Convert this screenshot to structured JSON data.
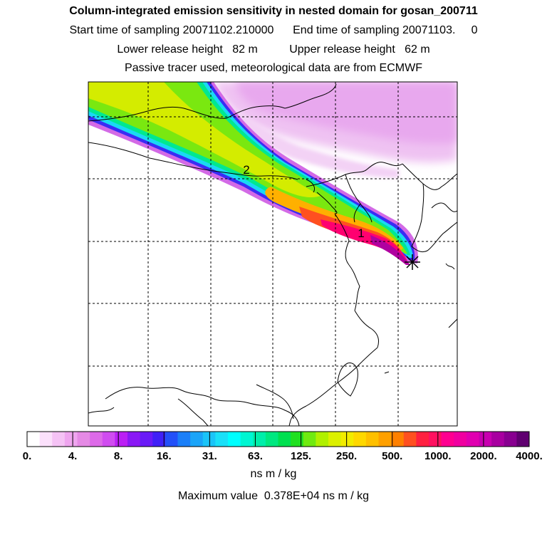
{
  "title": "Column-integrated emission sensitivity in nested domain for gosan_200711",
  "sampling_line": "Start time of sampling 20071102.210000      End time of sampling 20071103.     0",
  "release_line": "Lower release height   82 m          Upper release height   62 m",
  "tracer_line": "Passive tracer used, meteorological data are from ECMWF",
  "map": {
    "plume_labels": [
      "1",
      "2"
    ],
    "receptor_marker": "asterisk-icon",
    "colors": {
      "land_outline": "#000000",
      "grid": "#000000",
      "background": "#ffffff"
    }
  },
  "colorbar": {
    "tick_labels": [
      "0.",
      "4.",
      "8.",
      "16.",
      "31.",
      "63.",
      "125.",
      "250.",
      "500.",
      "1000.",
      "2000.",
      "4000."
    ],
    "colors": [
      "#ffffff",
      "#fbe0fb",
      "#f5c2f5",
      "#efa5ef",
      "#e58ae5",
      "#dd6ae8",
      "#d04cf0",
      "#bb1ff4",
      "#8a18f5",
      "#6a1af7",
      "#4020f7",
      "#2350f8",
      "#1b7ff8",
      "#1aa4f8",
      "#1ac4f8",
      "#1ae0f8",
      "#00ffff",
      "#00f6d2",
      "#00eeaa",
      "#00e880",
      "#00e050",
      "#20e020",
      "#70ea10",
      "#b0f000",
      "#dcf000",
      "#f2ec00",
      "#ffd800",
      "#ffc000",
      "#ffa000",
      "#ff8000",
      "#ff5020",
      "#ff2040",
      "#ff1060",
      "#ff0090",
      "#f000a0",
      "#e000b0",
      "#c800b0",
      "#a800a0",
      "#880090",
      "#600070"
    ],
    "units": "ns m / kg",
    "max_value_text": "Maximum value  0.378E+04 ns m / kg"
  }
}
